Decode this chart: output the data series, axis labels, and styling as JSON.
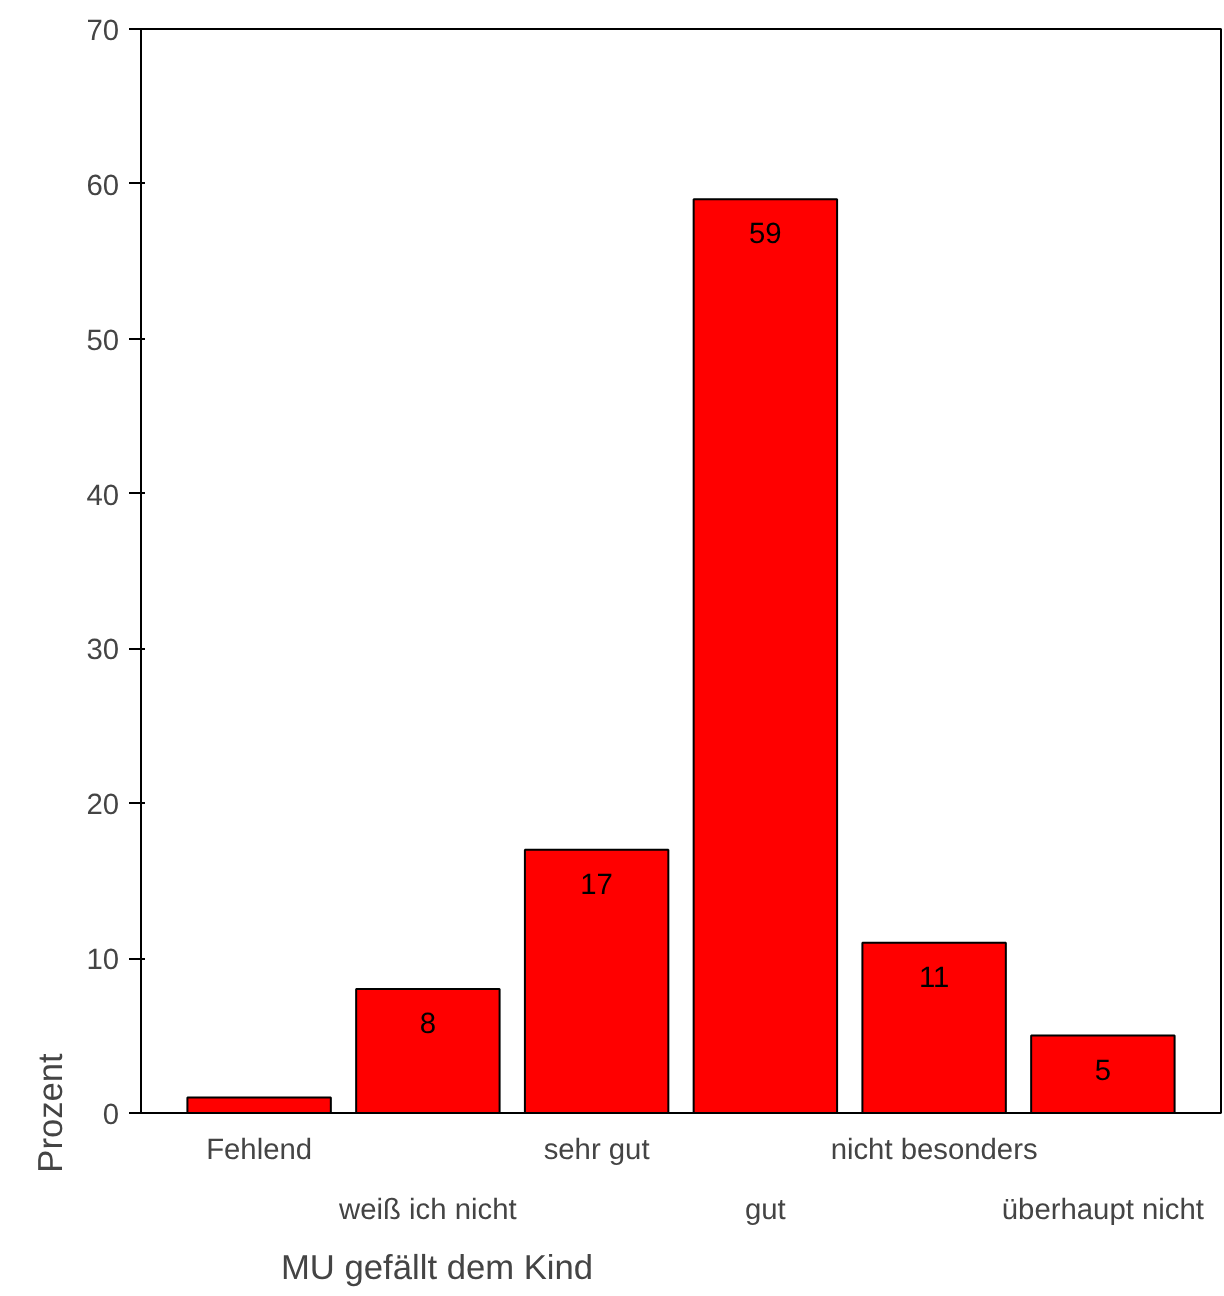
{
  "chart_data": {
    "type": "bar",
    "xlabel": "MU gefällt dem Kind",
    "ylabel": "Prozent",
    "categories": [
      "Fehlend",
      "weiß ich nicht",
      "sehr gut",
      "gut",
      "nicht besonders",
      "überhaupt nicht"
    ],
    "values": [
      1,
      8,
      17,
      59,
      11,
      5
    ],
    "value_labels": [
      null,
      "8",
      "17",
      "59",
      "11",
      "5"
    ],
    "color": "#ff0000",
    "ylim": [
      0,
      70
    ],
    "yticks": [
      0,
      10,
      20,
      30,
      40,
      50,
      60,
      70
    ],
    "grid": false
  }
}
